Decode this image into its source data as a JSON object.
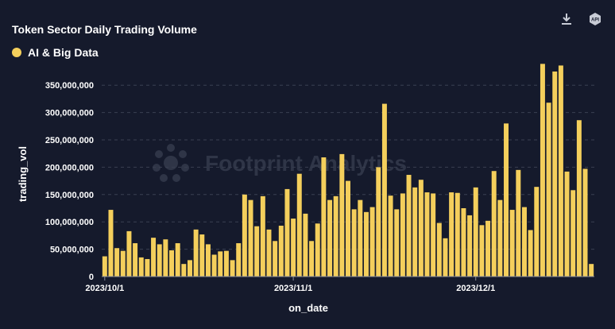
{
  "toolbar": {
    "download_icon": "download-icon",
    "api_icon": "api-icon",
    "api_label": "API"
  },
  "watermark": "Footprint Analytics",
  "colors": {
    "background": "#151a2c",
    "bar": "#f4cf5c",
    "grid": "#3a4052",
    "axis": "#8a8f9c"
  },
  "chart_data": {
    "type": "bar",
    "title": "Token Sector Daily Trading Volume",
    "xlabel": "on_date",
    "ylabel": "trading_vol",
    "ylim": [
      0,
      375000000
    ],
    "yticks": [
      0,
      50000000,
      100000000,
      150000000,
      200000000,
      250000000,
      300000000,
      350000000
    ],
    "ytick_labels": [
      "0",
      "50,000,000",
      "100,000,000",
      "150,000,000",
      "200,000,000",
      "250,000,000",
      "300,000,000",
      "350,000,000"
    ],
    "x_tick_labels": [
      {
        "label": "2023/10/1",
        "index": 0
      },
      {
        "label": "2023/11/1",
        "index": 31
      },
      {
        "label": "2023/12/1",
        "index": 61
      }
    ],
    "legend_position": "top-left",
    "grid": true,
    "series": [
      {
        "name": "AI & Big Data",
        "values": [
          37000000,
          122000000,
          52000000,
          47000000,
          83000000,
          61000000,
          35000000,
          32000000,
          71000000,
          59000000,
          68000000,
          48000000,
          61000000,
          23000000,
          30000000,
          86000000,
          77000000,
          59000000,
          40000000,
          46000000,
          47000000,
          30000000,
          61000000,
          150000000,
          140000000,
          92000000,
          147000000,
          86000000,
          65000000,
          93000000,
          160000000,
          106000000,
          188000000,
          115000000,
          65000000,
          97000000,
          218000000,
          140000000,
          147000000,
          224000000,
          175000000,
          123000000,
          140000000,
          118000000,
          127000000,
          200000000,
          316000000,
          148000000,
          123000000,
          152000000,
          186000000,
          163000000,
          177000000,
          154000000,
          152000000,
          98000000,
          70000000,
          154000000,
          153000000,
          125000000,
          112000000,
          163000000,
          94000000,
          102000000,
          193000000,
          140000000,
          280000000,
          122000000,
          195000000,
          127000000,
          85000000,
          164000000,
          389000000,
          318000000,
          375000000,
          386000000,
          192000000,
          158000000,
          286000000,
          197000000,
          23000000
        ]
      }
    ]
  }
}
